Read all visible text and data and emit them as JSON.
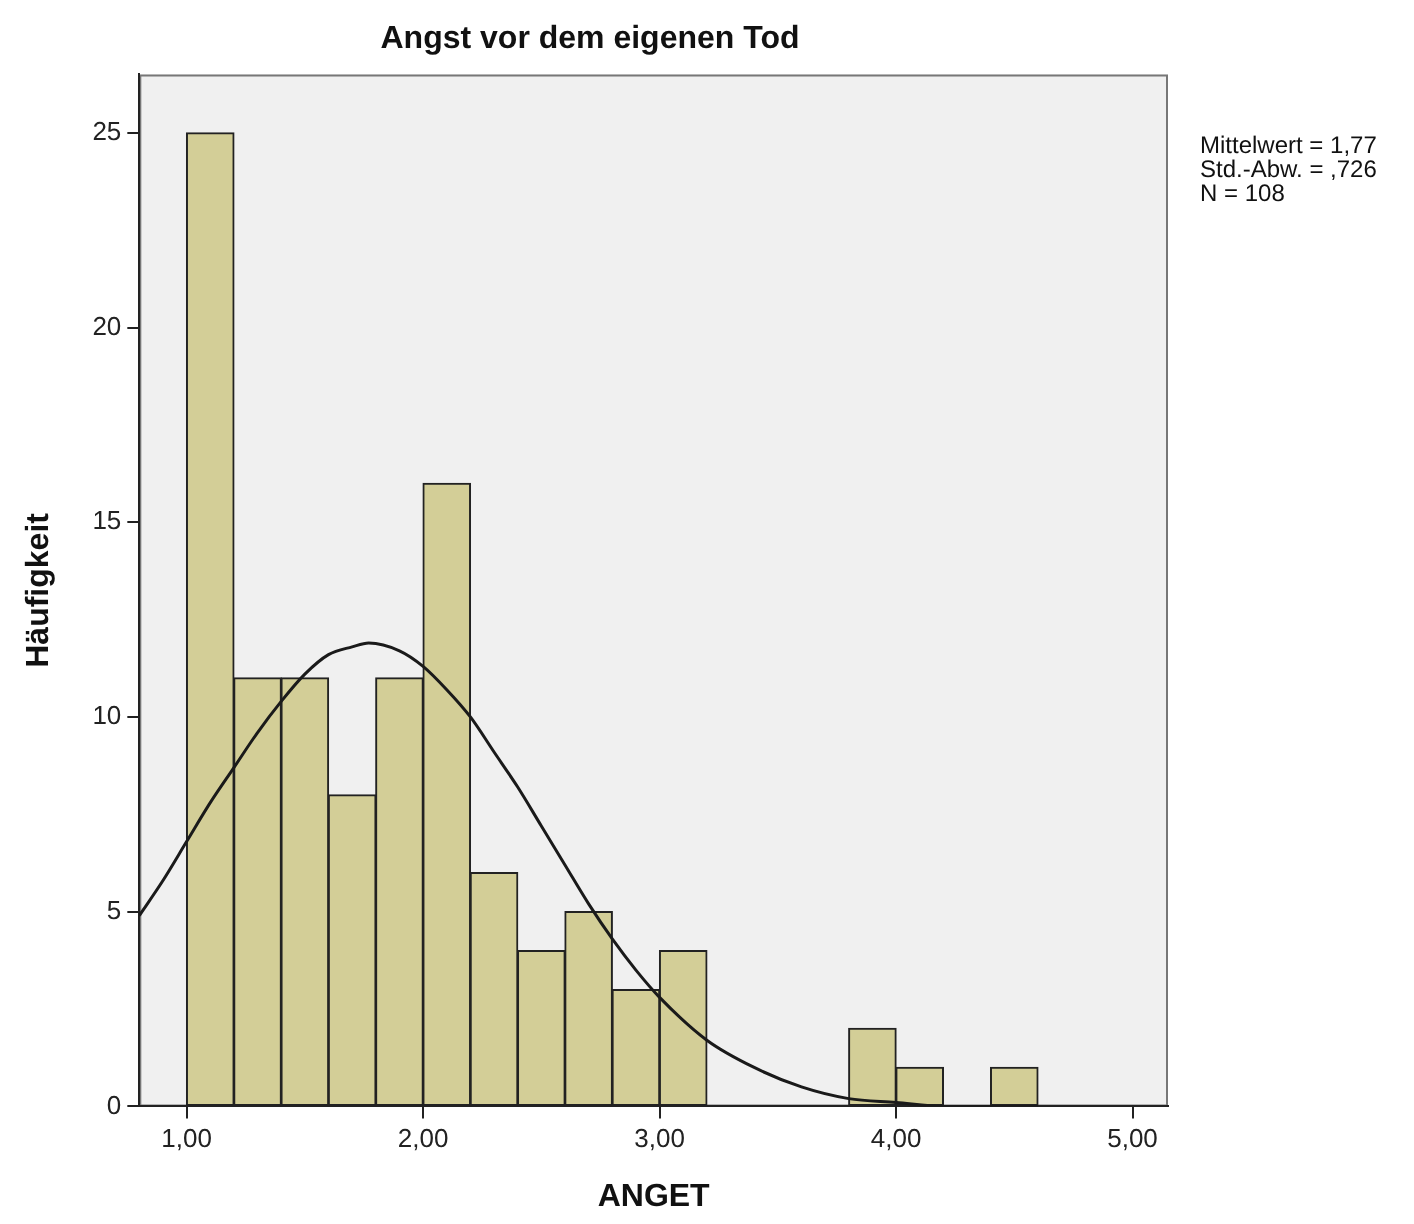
{
  "chart_data": {
    "type": "histogram",
    "title": "Angst vor dem eigenen Tod",
    "xlabel": "ANGET",
    "ylabel": "Häufigkeit",
    "bins": [
      1.0,
      1.2,
      1.4,
      1.6,
      1.8,
      2.0,
      2.2,
      2.4,
      2.6,
      2.8,
      3.0,
      3.2,
      3.4,
      3.6,
      3.8,
      4.0,
      4.2,
      4.4,
      4.6
    ],
    "values": [
      25,
      11,
      11,
      8,
      11,
      16,
      6,
      4,
      5,
      3,
      4,
      0,
      0,
      0,
      2,
      1,
      0,
      1
    ],
    "color": "#d3ce97",
    "series": [
      {
        "type": "line",
        "color": "#1a1a1a",
        "x": [
          0.8,
          0.9,
          1.0,
          1.1,
          1.2,
          1.3,
          1.4,
          1.5,
          1.6,
          1.7,
          1.77,
          1.9,
          2.0,
          2.1,
          2.2,
          2.3,
          2.4,
          2.5,
          2.6,
          2.7,
          2.8,
          2.9,
          3.0,
          3.2,
          3.4,
          3.6,
          3.8,
          4.0,
          4.2,
          4.4,
          4.6
        ],
        "values": [
          4.9,
          5.8,
          6.8,
          7.8,
          8.7,
          9.6,
          10.4,
          11.1,
          11.6,
          11.8,
          11.9,
          11.7,
          11.3,
          10.7,
          10.0,
          9.1,
          8.2,
          7.2,
          6.2,
          5.2,
          4.3,
          3.5,
          2.8,
          1.7,
          1.0,
          0.5,
          0.2,
          0.1,
          0.0,
          0.0,
          0.0
        ]
      }
    ],
    "xlim": [
      0.8,
      5.15
    ],
    "ylim": [
      0,
      26.5
    ],
    "xticks": [
      {
        "value": 1,
        "label": "1,00"
      },
      {
        "value": 2,
        "label": "2,00"
      },
      {
        "value": 3,
        "label": "3,00"
      },
      {
        "value": 4,
        "label": "4,00"
      },
      {
        "value": 5,
        "label": "5,00"
      }
    ],
    "yticks": [
      0,
      5,
      10,
      15,
      20,
      25
    ],
    "annotations": [
      "Mittelwert = 1,77",
      "Std.-Abw. = ,726",
      "N = 108"
    ],
    "grid": false,
    "legend": false,
    "marker": "none",
    "line_style": "solid"
  }
}
